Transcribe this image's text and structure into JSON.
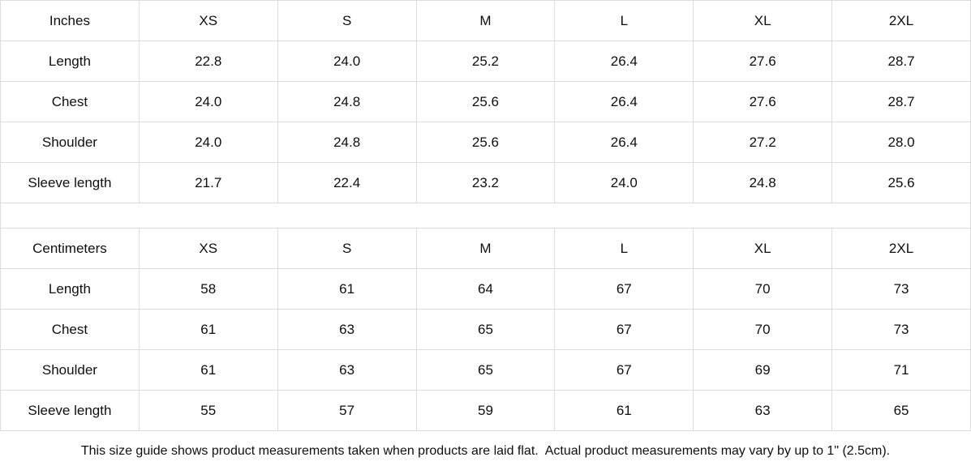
{
  "tables": [
    {
      "unit_label": "Inches",
      "sizes": [
        "XS",
        "S",
        "M",
        "L",
        "XL",
        "2XL"
      ],
      "rows": [
        {
          "label": "Length",
          "values": [
            "22.8",
            "24.0",
            "25.2",
            "26.4",
            "27.6",
            "28.7"
          ]
        },
        {
          "label": "Chest",
          "values": [
            "24.0",
            "24.8",
            "25.6",
            "26.4",
            "27.6",
            "28.7"
          ]
        },
        {
          "label": "Shoulder",
          "values": [
            "24.0",
            "24.8",
            "25.6",
            "26.4",
            "27.2",
            "28.0"
          ]
        },
        {
          "label": "Sleeve length",
          "values": [
            "21.7",
            "22.4",
            "23.2",
            "24.0",
            "24.8",
            "25.6"
          ]
        }
      ]
    },
    {
      "unit_label": "Centimeters",
      "sizes": [
        "XS",
        "S",
        "M",
        "L",
        "XL",
        "2XL"
      ],
      "rows": [
        {
          "label": "Length",
          "values": [
            "58",
            "61",
            "64",
            "67",
            "70",
            "73"
          ]
        },
        {
          "label": "Chest",
          "values": [
            "61",
            "63",
            "65",
            "67",
            "70",
            "73"
          ]
        },
        {
          "label": "Shoulder",
          "values": [
            "61",
            "63",
            "65",
            "67",
            "69",
            "71"
          ]
        },
        {
          "label": "Sleeve length",
          "values": [
            "55",
            "57",
            "59",
            "61",
            "63",
            "65"
          ]
        }
      ]
    }
  ],
  "footer": {
    "note": "This size guide shows product measurements taken when products are laid flat.  Actual product measurements may vary by up to 1\" (2.5cm)."
  },
  "colors": {
    "shaded_cell_bg": "#f1f1f1",
    "border": "#dcdcdc",
    "text": "#0f0f0f",
    "background": "#ffffff"
  },
  "chart_data": [
    {
      "type": "table",
      "title": "Inches",
      "columns": [
        "Inches",
        "XS",
        "S",
        "M",
        "L",
        "XL",
        "2XL"
      ],
      "rows": [
        [
          "Length",
          22.8,
          24.0,
          25.2,
          26.4,
          27.6,
          28.7
        ],
        [
          "Chest",
          24.0,
          24.8,
          25.6,
          26.4,
          27.6,
          28.7
        ],
        [
          "Shoulder",
          24.0,
          24.8,
          25.6,
          26.4,
          27.2,
          28.0
        ],
        [
          "Sleeve length",
          21.7,
          22.4,
          23.2,
          24.0,
          24.8,
          25.6
        ]
      ]
    },
    {
      "type": "table",
      "title": "Centimeters",
      "columns": [
        "Centimeters",
        "XS",
        "S",
        "M",
        "L",
        "XL",
        "2XL"
      ],
      "rows": [
        [
          "Length",
          58,
          61,
          64,
          67,
          70,
          73
        ],
        [
          "Chest",
          61,
          63,
          65,
          67,
          70,
          73
        ],
        [
          "Shoulder",
          61,
          63,
          65,
          67,
          69,
          71
        ],
        [
          "Sleeve length",
          55,
          57,
          59,
          61,
          63,
          65
        ]
      ]
    }
  ]
}
